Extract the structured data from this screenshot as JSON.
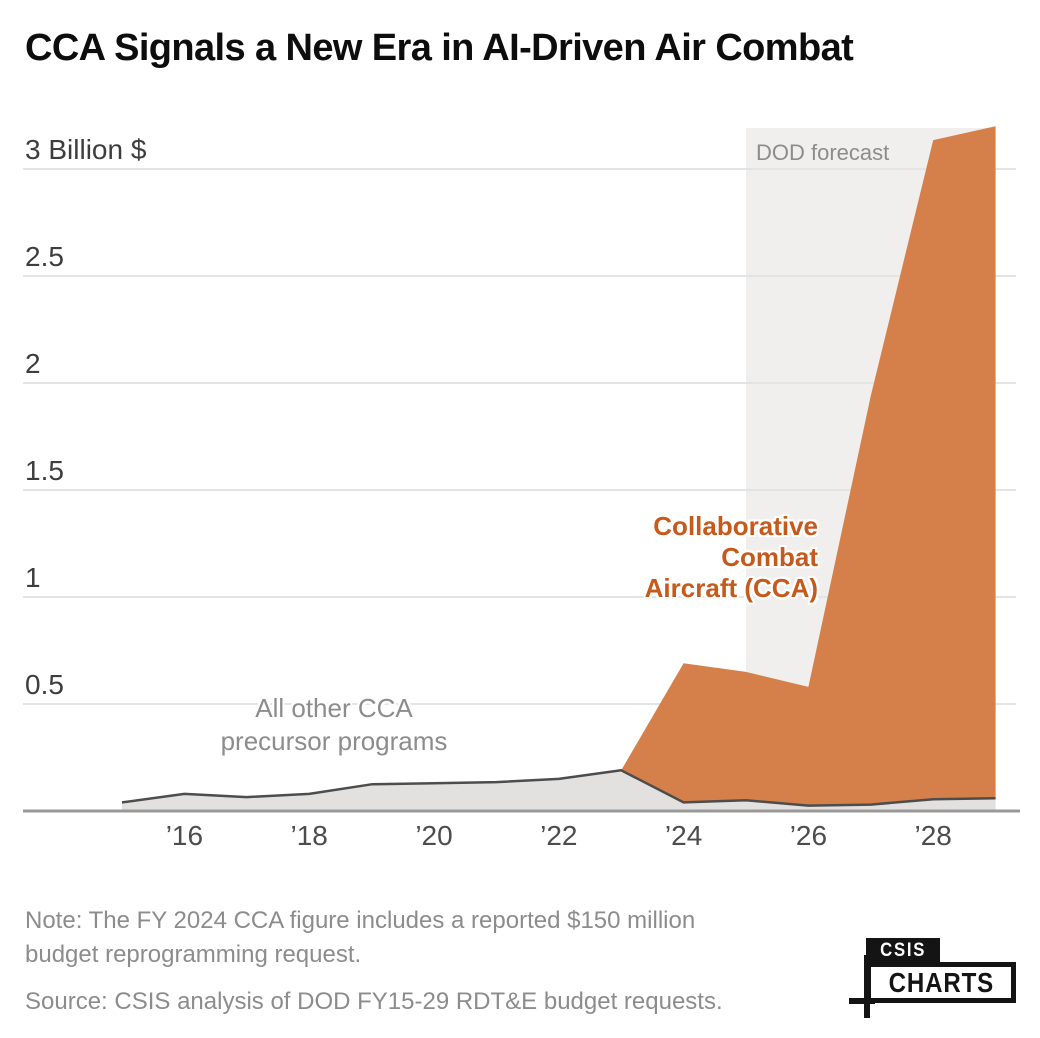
{
  "title": "CCA Signals a New Era in AI-Driven Air Combat",
  "annotations": {
    "forecast": "DOD forecast",
    "precursor_line1": "All other CCA",
    "precursor_line2": "precursor programs",
    "cca_line1": "Collaborative",
    "cca_line2": "Combat",
    "cca_line3": "Aircraft (CCA)"
  },
  "footer": {
    "note_line1": "Note: The FY 2024 CCA figure includes a reported $150 million",
    "note_line2": "budget reprogramming request.",
    "source": "Source: CSIS analysis of DOD FY15-29 RDT&E budget requests."
  },
  "logo": {
    "top": "CSIS",
    "bottom": "CHARTS"
  },
  "colors": {
    "cca_area": "#d5804b",
    "cca_text": "#c6591c",
    "precursor_area": "#e2e1e0",
    "boundary_stroke": "#4d4d4d",
    "forecast_band": "#f0efed",
    "gridline": "#e4e4e4",
    "axis": "#999999",
    "title_text": "#0d0d0d",
    "muted_text": "#8c8c8c"
  },
  "chart_data": {
    "type": "area",
    "stacked": true,
    "title": "CCA Signals a New Era in AI-Driven Air Combat",
    "unit": "billions of USD",
    "ylabel": "Billion $",
    "ylim": [
      0,
      3.25
    ],
    "grid": true,
    "x": [
      2015,
      2016,
      2017,
      2018,
      2019,
      2020,
      2021,
      2022,
      2023,
      2024,
      2025,
      2026,
      2027,
      2028,
      2029
    ],
    "series": [
      {
        "name": "All other CCA precursor programs",
        "values": [
          0.04,
          0.08,
          0.065,
          0.08,
          0.125,
          0.13,
          0.135,
          0.15,
          0.19,
          0.04,
          0.05,
          0.025,
          0.03,
          0.055,
          0.06
        ]
      },
      {
        "name": "Collaborative Combat Aircraft (CCA)",
        "values": [
          0,
          0,
          0,
          0,
          0,
          0,
          0,
          0,
          0,
          0.65,
          0.6,
          0.555,
          1.91,
          3.08,
          3.14
        ]
      }
    ],
    "forecast_region": {
      "label": "DOD forecast",
      "start": 2025,
      "end": 2029
    },
    "yticks": [
      {
        "value": 0.5,
        "label": "0.5"
      },
      {
        "value": 1,
        "label": "1"
      },
      {
        "value": 1.5,
        "label": "1.5"
      },
      {
        "value": 2,
        "label": "2"
      },
      {
        "value": 2.5,
        "label": "2.5"
      },
      {
        "value": 3,
        "label": "3 Billion $"
      }
    ],
    "xticks": [
      {
        "value": 2016,
        "label": "’16"
      },
      {
        "value": 2018,
        "label": "’18"
      },
      {
        "value": 2020,
        "label": "’20"
      },
      {
        "value": 2022,
        "label": "’22"
      },
      {
        "value": 2024,
        "label": "’24"
      },
      {
        "value": 2026,
        "label": "’26"
      },
      {
        "value": 2028,
        "label": "’28"
      }
    ]
  }
}
